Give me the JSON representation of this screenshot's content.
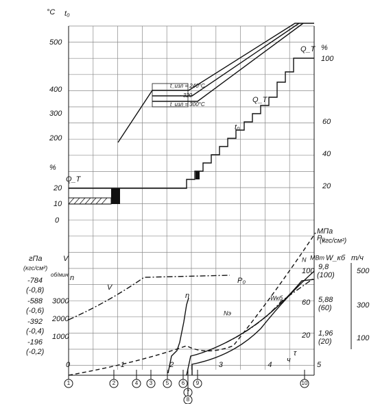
{
  "upper": {
    "temp_unit": "°C",
    "temp_symbol": "t₀",
    "temp_ticks": [
      "500",
      "400",
      "300",
      "200"
    ],
    "load_unit_left": "%",
    "load_symbol_left": "Q_T",
    "load_ticks_left": [
      "20",
      "10",
      "0"
    ],
    "load_unit_right": "%",
    "load_symbol_right": "Q_T",
    "load_ticks_right": [
      "100",
      "60",
      "40",
      "20"
    ],
    "curve_labels": [
      "t₀",
      "Q_T"
    ],
    "notes": [
      "t_изл = 240°C",
      "· 320",
      "t_изл = 300°C"
    ]
  },
  "lower": {
    "pressure_unit": "гПа",
    "pressure_unit_alt": "(кгс/см²)",
    "pressure_ticks": [
      "-784",
      "(-0,8)",
      "-588",
      "(-0,6)",
      "-392",
      "(-0,4)",
      "-196",
      "(-0,2)"
    ],
    "v_symbol": "V",
    "n_symbol": "n",
    "rpm_unit": "об/мин",
    "rpm_ticks": [
      "3000",
      "2000",
      "1000"
    ],
    "right_unit": "МПа",
    "right_unit_alt": "(кгс/см²)",
    "p_symbol": "P₀",
    "power_units": [
      "МВт",
      "W_кб",
      "т/ч"
    ],
    "p_ticks": [
      "9,8",
      "(100)",
      "5,88",
      "(60)",
      "1,96",
      "(20)"
    ],
    "power_ticks": [
      "100",
      "60",
      "20"
    ],
    "flow_ticks": [
      "500",
      "300",
      "100"
    ],
    "curve_labels": [
      "V",
      "n",
      "P₀",
      "Nэ",
      "Wкб",
      "N"
    ],
    "time_symbol": "τ",
    "time_unit": "ч"
  },
  "x_ticks": [
    "0",
    "1",
    "2",
    "3",
    "4",
    "5"
  ],
  "stages": [
    "1",
    "2",
    "4",
    "3",
    "5",
    "6",
    "9",
    "7",
    "8",
    "10"
  ]
}
